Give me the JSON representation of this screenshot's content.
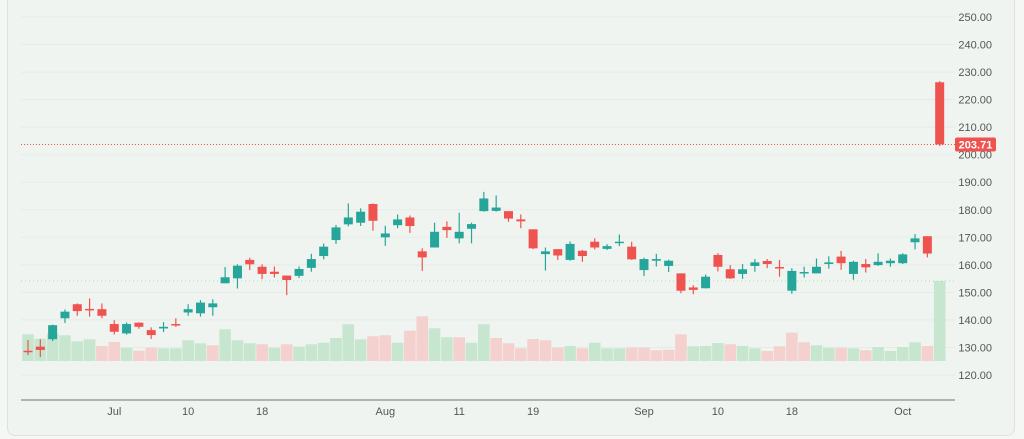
{
  "chart_data": {
    "type": "candlestick",
    "title": "",
    "xlabel": "",
    "ylabel": "",
    "ylim": [
      120,
      250
    ],
    "y_ticks": [
      "120.00",
      "130.00",
      "140.00",
      "150.00",
      "160.00",
      "170.00",
      "180.00",
      "190.00",
      "200.00",
      "210.00",
      "220.00",
      "230.00",
      "240.00",
      "250.00"
    ],
    "x_ticks": [
      {
        "label": "Jul",
        "date": "Jul 1"
      },
      {
        "label": "10",
        "date": "Jul 10"
      },
      {
        "label": "18",
        "date": "Jul 18"
      },
      {
        "label": "Aug",
        "date": "Aug 1"
      },
      {
        "label": "11",
        "date": "Aug 11"
      },
      {
        "label": "19",
        "date": "Aug 19"
      },
      {
        "label": "Sep",
        "date": "Sep 2"
      },
      {
        "label": "10",
        "date": "Sep 10"
      },
      {
        "label": "18",
        "date": "Sep 18"
      },
      {
        "label": "Oct",
        "date": "Oct 1"
      }
    ],
    "last_price_label": "203.71",
    "last_price": 203.71,
    "grid": true,
    "colors": {
      "up": "#26a69a",
      "down": "#ef5350",
      "volume_up": "#c7e6cf",
      "volume_down": "#f4d0ce",
      "background": "#f0f4f0"
    },
    "dates": [
      "Jun 20",
      "Jun 23",
      "Jun 24",
      "Jun 25",
      "Jun 26",
      "Jun 27",
      "Jun 30",
      "Jul 1",
      "Jul 2",
      "Jul 3",
      "Jul 7",
      "Jul 8",
      "Jul 9",
      "Jul 10",
      "Jul 11",
      "Jul 14",
      "Jul 15",
      "Jul 16",
      "Jul 17",
      "Jul 18",
      "Jul 21",
      "Jul 22",
      "Jul 23",
      "Jul 24",
      "Jul 25",
      "Jul 28",
      "Jul 29",
      "Jul 30",
      "Jul 31",
      "Aug 1",
      "Aug 4",
      "Aug 5",
      "Aug 6",
      "Aug 7",
      "Aug 8",
      "Aug 11",
      "Aug 12",
      "Aug 13",
      "Aug 14",
      "Aug 15",
      "Aug 18",
      "Aug 19",
      "Aug 20",
      "Aug 21",
      "Aug 22",
      "Aug 25",
      "Aug 26",
      "Aug 27",
      "Aug 28",
      "Aug 29",
      "Sep 2",
      "Sep 3",
      "Sep 4",
      "Sep 5",
      "Sep 8",
      "Sep 9",
      "Sep 10",
      "Sep 11",
      "Sep 12",
      "Sep 15",
      "Sep 16",
      "Sep 17",
      "Sep 18",
      "Sep 19",
      "Sep 22",
      "Sep 23",
      "Sep 24",
      "Sep 25",
      "Sep 26",
      "Sep 29",
      "Sep 30",
      "Oct 1",
      "Oct 2",
      "Oct 3",
      "Oct 6"
    ],
    "ohlc": [
      [
        128.8,
        132.7,
        127.2,
        128.3
      ],
      [
        130.3,
        133,
        126.5,
        129.1
      ],
      [
        133,
        138.3,
        132.3,
        138.1
      ],
      [
        140.6,
        143.8,
        138.9,
        143
      ],
      [
        145.7,
        146,
        141.5,
        143.2
      ],
      [
        144,
        147.8,
        141.2,
        143.8
      ],
      [
        143.9,
        146,
        140.6,
        141.5
      ],
      [
        138.5,
        139.9,
        134.7,
        135.7
      ],
      [
        135.1,
        139.1,
        134.7,
        138.5
      ],
      [
        139,
        139.1,
        136.8,
        137.5
      ],
      [
        136.3,
        137.3,
        133.1,
        134.5
      ],
      [
        136.9,
        139.2,
        135.6,
        137.5
      ],
      [
        138.5,
        140.6,
        137.5,
        138
      ],
      [
        142.7,
        145.7,
        141.5,
        143.9
      ],
      [
        142.4,
        147.2,
        141.2,
        146.3
      ],
      [
        144.6,
        147.5,
        141.5,
        146
      ],
      [
        153.3,
        159.2,
        153.3,
        155.5
      ],
      [
        155.1,
        160.2,
        151.4,
        159.7
      ],
      [
        161.8,
        162.6,
        158.1,
        160.2
      ],
      [
        159.3,
        160.2,
        154.8,
        156.7
      ],
      [
        157.5,
        159.4,
        155.4,
        156.7
      ],
      [
        156.1,
        156.1,
        149,
        154.5
      ],
      [
        156,
        159.4,
        155.2,
        158.5
      ],
      [
        158.9,
        164,
        157.5,
        162.1
      ],
      [
        163.2,
        167.7,
        162,
        166.6
      ],
      [
        169,
        174.5,
        167.6,
        173.6
      ],
      [
        174.7,
        182.3,
        174,
        177.2
      ],
      [
        175.3,
        180.5,
        174.1,
        179.3
      ],
      [
        182.1,
        182.3,
        172.4,
        176
      ],
      [
        170,
        174.2,
        166.9,
        171.4
      ],
      [
        174.4,
        178.3,
        173.3,
        176.5
      ],
      [
        177.2,
        177.9,
        171.6,
        174.1
      ],
      [
        164.9,
        166,
        157.8,
        162.7
      ],
      [
        166.3,
        175.3,
        166.3,
        172
      ],
      [
        173.8,
        175.8,
        169.8,
        172.6
      ],
      [
        169.6,
        178.9,
        167.8,
        172
      ],
      [
        173.1,
        175.3,
        167.8,
        174.8
      ],
      [
        179.5,
        186.5,
        179.3,
        184.1
      ],
      [
        179.6,
        185.2,
        179.3,
        180.8
      ],
      [
        179.5,
        179.5,
        175.6,
        176.8
      ],
      [
        176.5,
        178.3,
        173.3,
        175.8
      ],
      [
        172.9,
        172.9,
        165.7,
        166
      ],
      [
        163.9,
        166.3,
        157.9,
        164.9
      ],
      [
        165.7,
        165.7,
        161.8,
        163.4
      ],
      [
        161.8,
        168.5,
        161.5,
        167.6
      ],
      [
        165.1,
        165.4,
        161.1,
        163.2
      ],
      [
        168.4,
        169.6,
        165.6,
        166.3
      ],
      [
        165.8,
        167.5,
        165.4,
        166.8
      ],
      [
        168.3,
        171,
        166.8,
        168.4
      ],
      [
        166.6,
        168.4,
        161.8,
        162
      ],
      [
        158.1,
        162.6,
        155.9,
        162.1
      ],
      [
        161.5,
        164,
        159.4,
        162.1
      ],
      [
        159.6,
        161.9,
        157.4,
        161.5
      ],
      [
        156.9,
        156.9,
        149.7,
        150.6
      ],
      [
        151.8,
        152.6,
        149.3,
        150.9
      ],
      [
        151.5,
        156.5,
        151.4,
        155.7
      ],
      [
        163.6,
        164.2,
        157.6,
        159.3
      ],
      [
        158.4,
        159.9,
        154.9,
        155.1
      ],
      [
        156.7,
        160.3,
        154.9,
        158.4
      ],
      [
        159.6,
        162.1,
        157.5,
        160.9
      ],
      [
        161.4,
        162.1,
        158.8,
        160.3
      ],
      [
        159.2,
        161.8,
        155.7,
        159
      ],
      [
        150.6,
        158.8,
        149.5,
        157.8
      ],
      [
        156.9,
        159.3,
        155.4,
        157.4
      ],
      [
        156.9,
        162.3,
        156.9,
        159.3
      ],
      [
        160.3,
        163.1,
        158.6,
        160.9
      ],
      [
        163,
        165.1,
        158.2,
        160.6
      ],
      [
        156.7,
        161.5,
        154.6,
        161.1
      ],
      [
        160.3,
        162.1,
        157.2,
        159.1
      ],
      [
        159.9,
        164.2,
        159.6,
        161.1
      ],
      [
        160.6,
        162.3,
        159.3,
        161.5
      ],
      [
        160.6,
        164.2,
        160.3,
        163.8
      ],
      [
        168.2,
        171.2,
        165.6,
        169.6
      ],
      [
        170.4,
        170.4,
        162.7,
        164.1
      ],
      [
        226.3,
        226.7,
        203.2,
        203.71
      ]
    ],
    "volume": [
      26.7,
      22.3,
      27.3,
      25.7,
      19.7,
      21.7,
      15,
      19,
      13.3,
      10.3,
      13.3,
      12.7,
      12.7,
      20.7,
      17.7,
      15.7,
      31.7,
      20.7,
      17.7,
      16.7,
      13.3,
      16.7,
      14.3,
      16.7,
      18.3,
      23,
      36.7,
      21.7,
      24.7,
      25.7,
      18.3,
      30.3,
      44.7,
      32.7,
      23.7,
      23.7,
      18.3,
      36.7,
      23,
      17.7,
      12.7,
      22,
      20.7,
      13.3,
      15,
      12.7,
      18.3,
      12.7,
      12.7,
      13.3,
      13.3,
      10.7,
      11.3,
      26.7,
      14.7,
      15,
      18,
      16.7,
      15,
      12.7,
      10,
      14.7,
      28.3,
      18.7,
      15.7,
      13.3,
      13.3,
      12.7,
      10.7,
      14,
      10,
      14,
      18.7,
      15,
      80
    ],
    "volume_up": [
      1,
      1,
      1,
      1,
      1,
      1,
      0,
      0,
      1,
      0,
      0,
      1,
      1,
      1,
      1,
      0,
      1,
      1,
      1,
      0,
      1,
      0,
      1,
      1,
      1,
      1,
      1,
      1,
      0,
      0,
      1,
      0,
      0,
      1,
      1,
      0,
      1,
      1,
      0,
      0,
      0,
      0,
      0,
      0,
      1,
      0,
      1,
      1,
      1,
      0,
      0,
      0,
      0,
      0,
      1,
      1,
      1,
      0,
      1,
      1,
      0,
      0,
      0,
      0,
      1,
      1,
      0,
      1,
      0,
      1,
      1,
      1,
      1,
      0,
      1
    ]
  }
}
